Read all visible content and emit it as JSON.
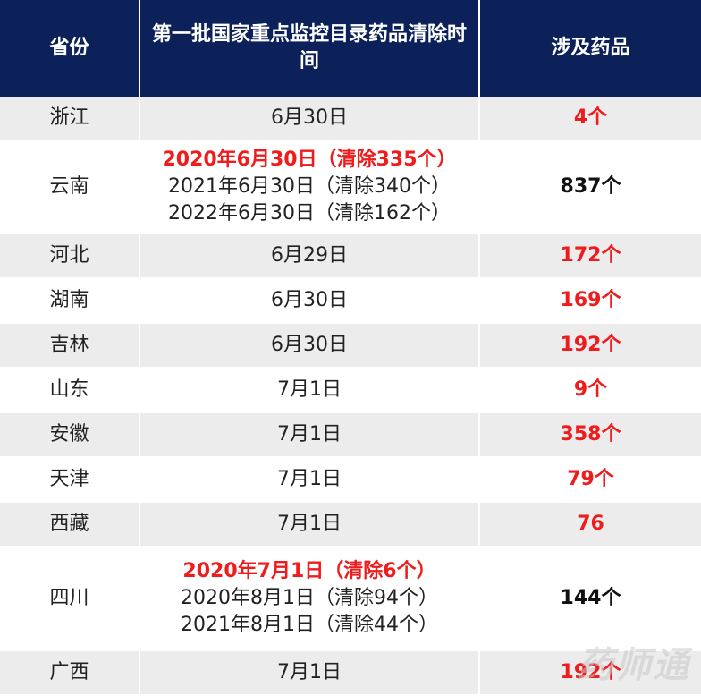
{
  "header": {
    "col_province": "省份",
    "col_time": "第一批国家重点监控目录药品清除时间",
    "col_drugs": "涉及药品"
  },
  "rows": [
    {
      "province": "浙江",
      "time": "6月30日",
      "drugs": "4个"
    },
    {
      "province": "云南",
      "time_lines": [
        "2020年6月30日（清除335个）",
        "2021年6月30日（清除340个）",
        "2022年6月30日（清除162个）"
      ],
      "drugs": "837个"
    },
    {
      "province": "河北",
      "time": "6月29日",
      "drugs": "172个"
    },
    {
      "province": "湖南",
      "time": "6月30日",
      "drugs": "169个"
    },
    {
      "province": "吉林",
      "time": "6月30日",
      "drugs": "192个"
    },
    {
      "province": "山东",
      "time": "7月1日",
      "drugs": "9个"
    },
    {
      "province": "安徽",
      "time": "7月1日",
      "drugs": "358个"
    },
    {
      "province": "天津",
      "time": "7月1日",
      "drugs": "79个"
    },
    {
      "province": "西藏",
      "time": "7月1日",
      "drugs": "76"
    },
    {
      "province": "四川",
      "time_lines": [
        "2020年7月1日（清除6个）",
        "2020年8月1日（清除94个）",
        "2021年8月1日（清除44个）"
      ],
      "drugs": "144个"
    },
    {
      "province": "广西",
      "time": "7月1日",
      "drugs": "192个"
    }
  ],
  "watermark": "药师通",
  "colors": {
    "header_bg": "#0c2159",
    "shade_row": "#ececec",
    "highlight_red": "#ee1c1c"
  }
}
